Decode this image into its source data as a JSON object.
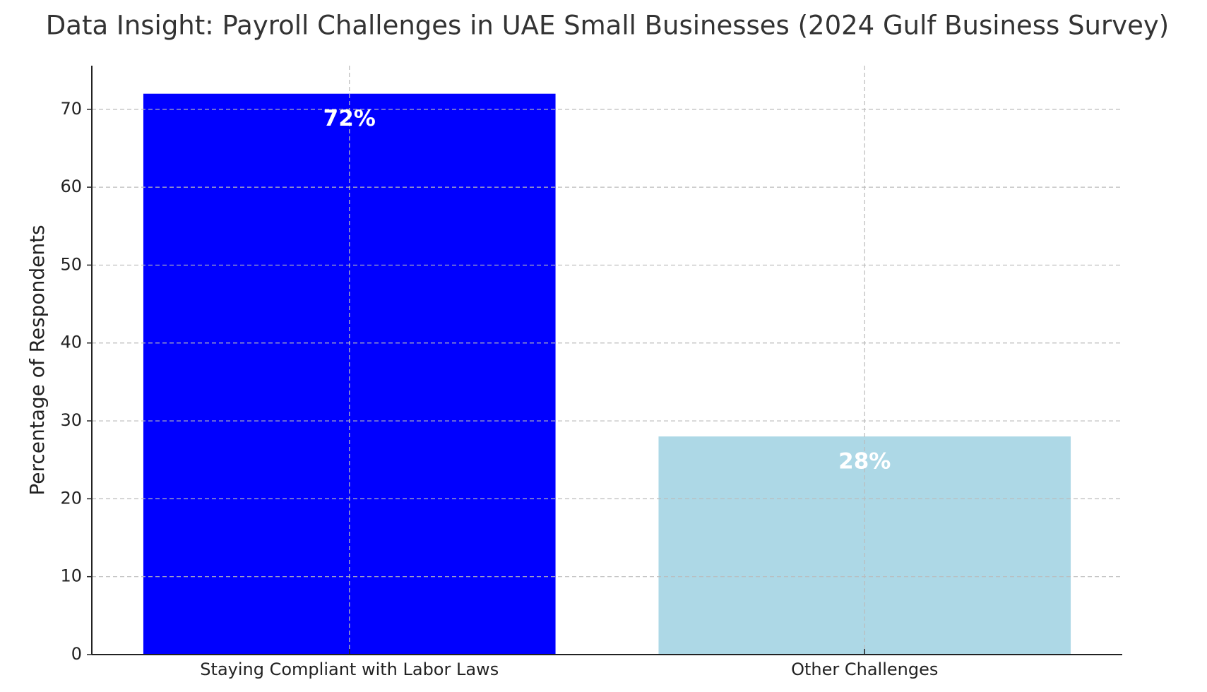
{
  "chart_data": {
    "type": "bar",
    "title": "Data Insight: Payroll Challenges in UAE Small Businesses (2024 Gulf Business Survey)",
    "y_label": "Percentage of Respondents",
    "categories": [
      "Staying Compliant with Labor Laws",
      "Other Challenges"
    ],
    "values": [
      72,
      28
    ],
    "value_labels": [
      "72%",
      "28%"
    ],
    "colors": [
      "#0000ff",
      "#add8e6"
    ],
    "ylim": [
      0,
      75.6
    ],
    "yticks": [
      0,
      10,
      20,
      30,
      40,
      50,
      60,
      70
    ],
    "grid": true
  }
}
